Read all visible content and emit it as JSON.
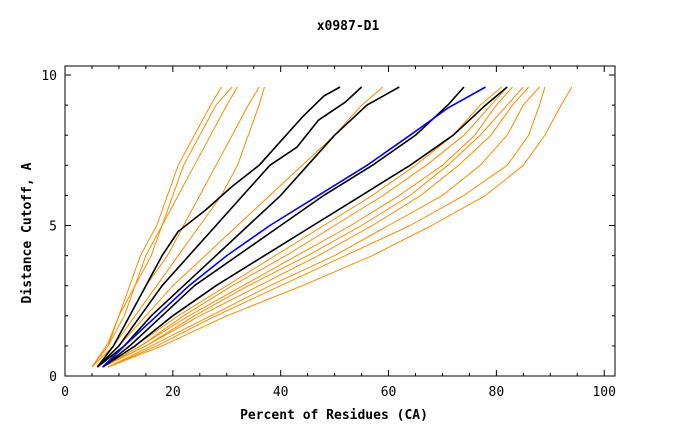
{
  "chart_data": {
    "type": "line",
    "title": "x0987-D1",
    "xlabel": "Percent of Residues (CA)",
    "ylabel": "Distance Cutoff, A",
    "xlim": [
      0,
      102
    ],
    "ylim": [
      0,
      10
    ],
    "x_ticks": [
      "0",
      "20",
      "40",
      "60",
      "80",
      "100"
    ],
    "y_ticks": [
      "0",
      "5",
      "10"
    ],
    "grid": false,
    "colors": {
      "orange": "#ff8c00",
      "black": "#000000",
      "blue": "#0000ff"
    },
    "series": [
      {
        "color": "#ff8c00",
        "points": [
          [
            5,
            0.3
          ],
          [
            8,
            1.0
          ],
          [
            10,
            2.0
          ],
          [
            12,
            3.0
          ],
          [
            14,
            4.0
          ],
          [
            17,
            5.0
          ],
          [
            19,
            6.0
          ],
          [
            21,
            7.0
          ],
          [
            24,
            8.0
          ],
          [
            27,
            9.0
          ],
          [
            29,
            9.6
          ]
        ]
      },
      {
        "color": "#ff8c00",
        "points": [
          [
            5,
            0.3
          ],
          [
            8,
            1.0
          ],
          [
            11,
            2.0
          ],
          [
            13,
            3.0
          ],
          [
            15,
            4.0
          ],
          [
            18,
            5.0
          ],
          [
            20,
            6.0
          ],
          [
            22,
            7.0
          ],
          [
            25,
            8.0
          ],
          [
            28,
            9.0
          ],
          [
            31,
            9.6
          ]
        ]
      },
      {
        "color": "#ff8c00",
        "points": [
          [
            5,
            0.3
          ],
          [
            8,
            1.1
          ],
          [
            10,
            2.0
          ],
          [
            13,
            3.0
          ],
          [
            16,
            4.0
          ],
          [
            18,
            5.0
          ],
          [
            21,
            6.0
          ],
          [
            24,
            7.0
          ],
          [
            27,
            8.0
          ],
          [
            30,
            9.0
          ],
          [
            32,
            9.6
          ]
        ]
      },
      {
        "color": "#ff8c00",
        "points": [
          [
            5,
            0.3
          ],
          [
            9,
            1.0
          ],
          [
            12,
            2.0
          ],
          [
            15,
            3.0
          ],
          [
            19,
            4.0
          ],
          [
            22,
            5.0
          ],
          [
            25,
            6.0
          ],
          [
            28,
            7.0
          ],
          [
            31,
            8.0
          ],
          [
            34,
            9.0
          ],
          [
            36,
            9.6
          ]
        ]
      },
      {
        "color": "#ff8c00",
        "points": [
          [
            6,
            0.3
          ],
          [
            9,
            1.0
          ],
          [
            13,
            2.0
          ],
          [
            17,
            3.0
          ],
          [
            21,
            4.0
          ],
          [
            25,
            5.0
          ],
          [
            29,
            6.0
          ],
          [
            32,
            7.0
          ],
          [
            34,
            8.0
          ],
          [
            36,
            9.0
          ],
          [
            37,
            9.6
          ]
        ]
      },
      {
        "color": "#000000",
        "points": [
          [
            6,
            0.3
          ],
          [
            9,
            1.0
          ],
          [
            12,
            2.0
          ],
          [
            15,
            3.0
          ],
          [
            18,
            4.0
          ],
          [
            21,
            4.8
          ],
          [
            26,
            5.5
          ],
          [
            31,
            6.3
          ],
          [
            36,
            7.0
          ],
          [
            40,
            7.8
          ],
          [
            44,
            8.6
          ],
          [
            48,
            9.3
          ],
          [
            51,
            9.6
          ]
        ]
      },
      {
        "color": "#000000",
        "points": [
          [
            6,
            0.3
          ],
          [
            10,
            1.0
          ],
          [
            14,
            2.0
          ],
          [
            18,
            3.0
          ],
          [
            23,
            4.0
          ],
          [
            28,
            5.0
          ],
          [
            33,
            6.0
          ],
          [
            38,
            7.0
          ],
          [
            43,
            7.6
          ],
          [
            47,
            8.5
          ],
          [
            52,
            9.1
          ],
          [
            55,
            9.6
          ]
        ]
      },
      {
        "color": "#ff8c00",
        "points": [
          [
            6,
            0.3
          ],
          [
            10,
            1.0
          ],
          [
            15,
            2.0
          ],
          [
            20,
            3.0
          ],
          [
            26,
            4.0
          ],
          [
            32,
            5.0
          ],
          [
            38,
            6.0
          ],
          [
            44,
            7.0
          ],
          [
            50,
            8.0
          ],
          [
            55,
            9.0
          ],
          [
            59,
            9.6
          ]
        ]
      },
      {
        "color": "#000000",
        "points": [
          [
            6,
            0.3
          ],
          [
            11,
            1.0
          ],
          [
            16,
            2.0
          ],
          [
            22,
            3.0
          ],
          [
            28,
            4.0
          ],
          [
            34,
            5.0
          ],
          [
            40,
            6.0
          ],
          [
            45,
            7.0
          ],
          [
            50,
            8.0
          ],
          [
            56,
            9.0
          ],
          [
            62,
            9.6
          ]
        ]
      },
      {
        "color": "#0000ff",
        "points": [
          [
            7,
            0.3
          ],
          [
            11,
            1.0
          ],
          [
            17,
            2.0
          ],
          [
            23,
            3.0
          ],
          [
            30,
            4.0
          ],
          [
            38,
            5.0
          ],
          [
            47,
            6.0
          ],
          [
            56,
            7.0
          ],
          [
            64,
            8.0
          ],
          [
            71,
            8.9
          ],
          [
            78,
            9.6
          ]
        ]
      },
      {
        "color": "#000000",
        "points": [
          [
            7,
            0.3
          ],
          [
            12,
            1.0
          ],
          [
            18,
            2.0
          ],
          [
            24,
            3.0
          ],
          [
            32,
            4.0
          ],
          [
            40,
            5.0
          ],
          [
            48,
            6.0
          ],
          [
            57,
            7.0
          ],
          [
            65,
            8.0
          ],
          [
            71,
            9.0
          ],
          [
            74,
            9.6
          ]
        ]
      },
      {
        "color": "#000000",
        "points": [
          [
            7,
            0.3
          ],
          [
            13,
            1.0
          ],
          [
            20,
            2.0
          ],
          [
            28,
            3.0
          ],
          [
            37,
            4.0
          ],
          [
            46,
            5.0
          ],
          [
            55,
            6.0
          ],
          [
            64,
            7.0
          ],
          [
            72,
            8.0
          ],
          [
            78,
            9.0
          ],
          [
            82,
            9.6
          ]
        ]
      },
      {
        "color": "#ff8c00",
        "points": [
          [
            7,
            0.3
          ],
          [
            13,
            1.0
          ],
          [
            21,
            2.0
          ],
          [
            30,
            3.0
          ],
          [
            39,
            4.0
          ],
          [
            48,
            5.0
          ],
          [
            57,
            6.0
          ],
          [
            65,
            7.0
          ],
          [
            72,
            8.0
          ],
          [
            77,
            9.0
          ],
          [
            81,
            9.6
          ]
        ]
      },
      {
        "color": "#ff8c00",
        "points": [
          [
            7,
            0.3
          ],
          [
            14,
            1.0
          ],
          [
            22,
            2.0
          ],
          [
            31,
            3.0
          ],
          [
            41,
            4.0
          ],
          [
            50,
            5.0
          ],
          [
            59,
            6.0
          ],
          [
            67,
            7.0
          ],
          [
            74,
            8.0
          ],
          [
            79,
            9.0
          ],
          [
            82,
            9.6
          ]
        ]
      },
      {
        "color": "#ff8c00",
        "points": [
          [
            7,
            0.3
          ],
          [
            14,
            1.0
          ],
          [
            23,
            2.0
          ],
          [
            33,
            3.0
          ],
          [
            43,
            4.0
          ],
          [
            53,
            5.0
          ],
          [
            62,
            6.0
          ],
          [
            70,
            7.0
          ],
          [
            76,
            8.0
          ],
          [
            80,
            9.0
          ],
          [
            83,
            9.6
          ]
        ]
      },
      {
        "color": "#ff8c00",
        "points": [
          [
            7,
            0.3
          ],
          [
            15,
            1.0
          ],
          [
            24,
            2.0
          ],
          [
            34,
            3.0
          ],
          [
            45,
            4.0
          ],
          [
            55,
            5.0
          ],
          [
            64,
            6.0
          ],
          [
            71,
            7.0
          ],
          [
            77,
            8.0
          ],
          [
            82,
            9.0
          ],
          [
            85,
            9.6
          ]
        ]
      },
      {
        "color": "#ff8c00",
        "points": [
          [
            7,
            0.3
          ],
          [
            15,
            1.0
          ],
          [
            25,
            2.0
          ],
          [
            36,
            3.0
          ],
          [
            47,
            4.0
          ],
          [
            57,
            5.0
          ],
          [
            66,
            6.0
          ],
          [
            73,
            7.0
          ],
          [
            79,
            8.0
          ],
          [
            83,
            9.0
          ],
          [
            86,
            9.6
          ]
        ]
      },
      {
        "color": "#ff8c00",
        "points": [
          [
            8,
            0.3
          ],
          [
            16,
            1.0
          ],
          [
            27,
            2.0
          ],
          [
            38,
            3.0
          ],
          [
            50,
            4.0
          ],
          [
            60,
            5.0
          ],
          [
            70,
            6.0
          ],
          [
            77,
            7.0
          ],
          [
            82,
            8.0
          ],
          [
            85,
            9.0
          ],
          [
            88,
            9.6
          ]
        ]
      },
      {
        "color": "#ff8c00",
        "points": [
          [
            8,
            0.3
          ],
          [
            17,
            1.0
          ],
          [
            28,
            2.0
          ],
          [
            40,
            3.0
          ],
          [
            52,
            4.0
          ],
          [
            64,
            5.0
          ],
          [
            74,
            6.0
          ],
          [
            82,
            7.0
          ],
          [
            86,
            8.0
          ],
          [
            88,
            9.0
          ],
          [
            89,
            9.6
          ]
        ]
      },
      {
        "color": "#ff8c00",
        "points": [
          [
            8,
            0.3
          ],
          [
            18,
            1.0
          ],
          [
            30,
            2.0
          ],
          [
            44,
            3.0
          ],
          [
            57,
            4.0
          ],
          [
            68,
            5.0
          ],
          [
            78,
            6.0
          ],
          [
            85,
            7.0
          ],
          [
            89,
            8.0
          ],
          [
            92,
            9.0
          ],
          [
            94,
            9.6
          ]
        ]
      }
    ]
  }
}
